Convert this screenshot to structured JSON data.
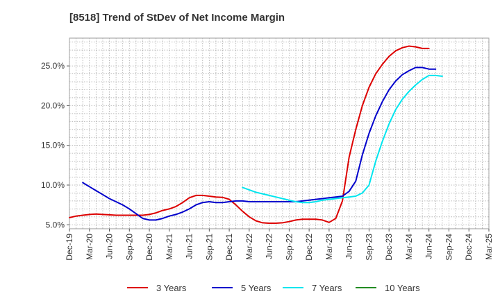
{
  "chart_data": {
    "type": "line",
    "title": "[8518]  Trend of StDev of Net Income Margin",
    "xlabel": "",
    "ylabel": "",
    "x_tick_labels": [
      "Dec-19",
      "Mar-20",
      "Jun-20",
      "Sep-20",
      "Dec-20",
      "Mar-21",
      "Jun-21",
      "Sep-21",
      "Dec-21",
      "Mar-22",
      "Jun-22",
      "Sep-22",
      "Dec-22",
      "Mar-23",
      "Jun-23",
      "Sep-23",
      "Dec-23",
      "Mar-24",
      "Jun-24",
      "Sep-24",
      "Dec-24",
      "Mar-25"
    ],
    "y_tick_labels": [
      "5.0%",
      "10.0%",
      "15.0%",
      "20.0%",
      "25.0%"
    ],
    "y_ticks": [
      5,
      10,
      15,
      20,
      25
    ],
    "ylim": [
      4.5,
      28.5
    ],
    "x_range_months": [
      "2019-12",
      "2025-03"
    ],
    "grid": true,
    "legend_position": "bottom",
    "series": [
      {
        "name": "3 Years",
        "color": "#dd0000",
        "start": "2019-12",
        "values": [
          5.9,
          6.1,
          6.2,
          6.3,
          6.35,
          6.3,
          6.25,
          6.2,
          6.2,
          6.2,
          6.2,
          6.2,
          6.3,
          6.5,
          6.8,
          7.0,
          7.3,
          7.8,
          8.4,
          8.7,
          8.7,
          8.6,
          8.5,
          8.45,
          8.2,
          7.5,
          6.7,
          6.0,
          5.5,
          5.25,
          5.2,
          5.2,
          5.25,
          5.4,
          5.6,
          5.7,
          5.7,
          5.7,
          5.6,
          5.3,
          5.8,
          8.0,
          13.5,
          17.0,
          20.0,
          22.3,
          24.0,
          25.2,
          26.2,
          26.9,
          27.3,
          27.5,
          27.4,
          27.2,
          27.2
        ]
      },
      {
        "name": "5 Years",
        "color": "#0000cc",
        "start": "2020-02",
        "values": [
          10.3,
          9.8,
          9.3,
          8.8,
          8.3,
          7.9,
          7.5,
          7.0,
          6.4,
          5.8,
          5.6,
          5.6,
          5.8,
          6.1,
          6.3,
          6.6,
          7.0,
          7.5,
          7.8,
          7.9,
          7.8,
          7.8,
          7.9,
          8.0,
          8.0,
          7.9,
          7.9,
          7.9,
          7.9,
          7.9,
          7.9,
          7.9,
          7.9,
          8.0,
          8.1,
          8.2,
          8.3,
          8.4,
          8.5,
          8.6,
          9.2,
          10.5,
          13.8,
          16.5,
          18.7,
          20.5,
          22.0,
          23.1,
          23.9,
          24.4,
          24.8,
          24.8,
          24.6,
          24.6
        ]
      },
      {
        "name": "7 Years",
        "color": "#00e5ee",
        "start": "2022-02",
        "values": [
          9.7,
          9.4,
          9.1,
          8.9,
          8.7,
          8.5,
          8.3,
          8.1,
          7.9,
          7.8,
          7.8,
          7.9,
          8.1,
          8.2,
          8.3,
          8.4,
          8.5,
          8.6,
          9.0,
          10.0,
          13.0,
          15.5,
          17.7,
          19.5,
          20.8,
          21.8,
          22.6,
          23.3,
          23.8,
          23.8,
          23.7
        ]
      },
      {
        "name": "10 Years",
        "color": "#228b22",
        "start": "2019-12",
        "values": []
      }
    ]
  }
}
